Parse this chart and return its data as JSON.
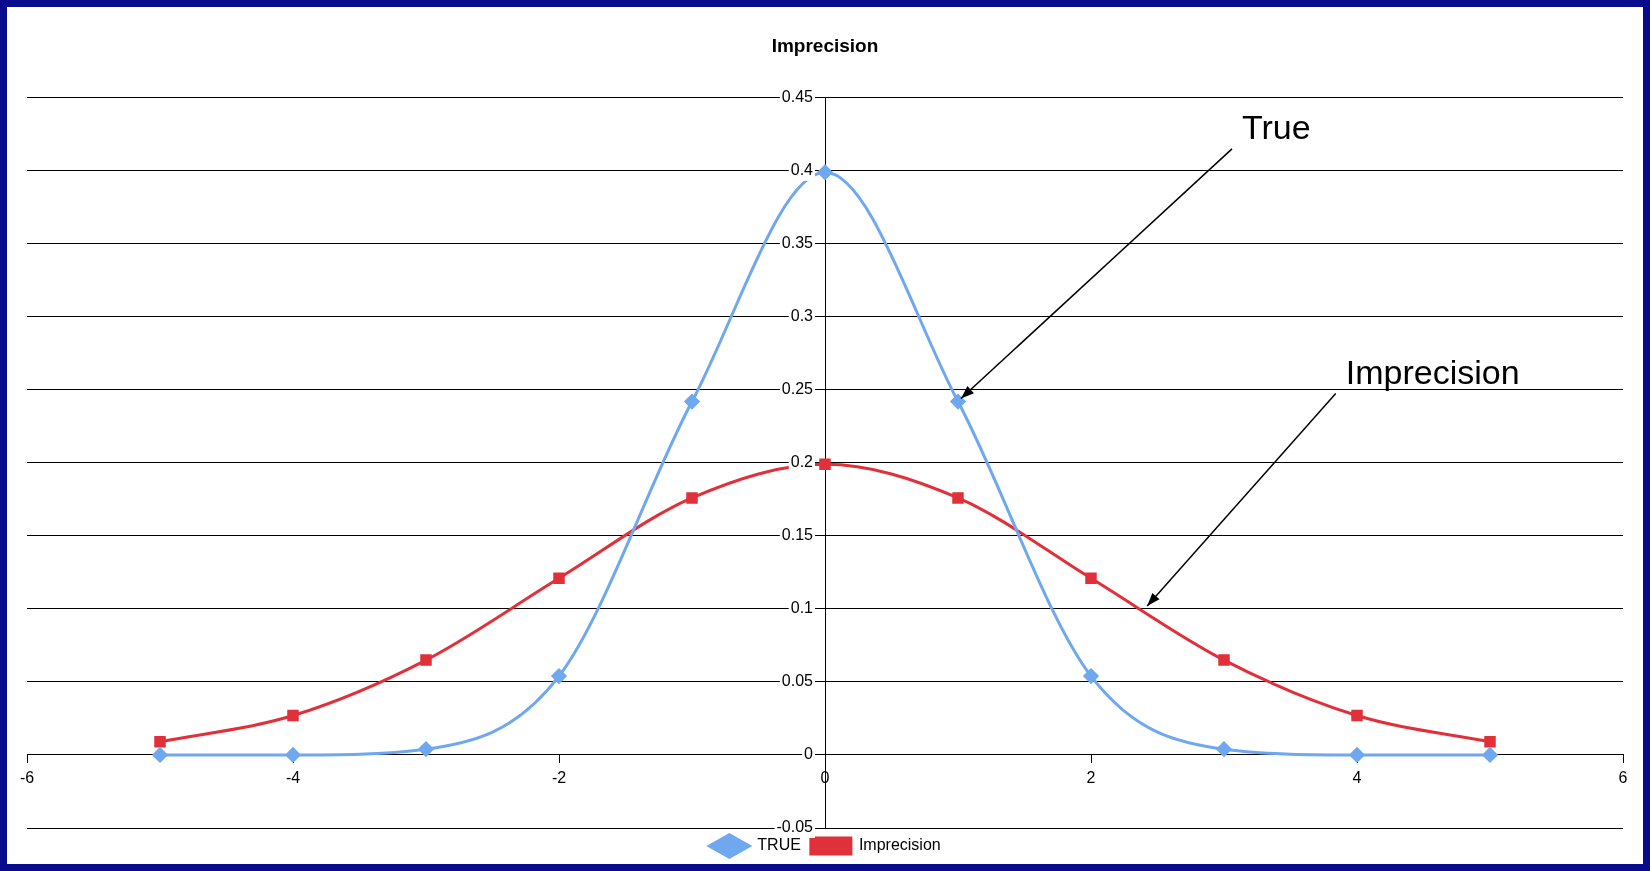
{
  "chart_data": {
    "type": "line",
    "title": "Imprecision",
    "series": [
      {
        "name": "TRUE",
        "color": "#6fa8ef",
        "marker": "diamond",
        "x": [
          -5,
          -4,
          -3,
          -2,
          -1,
          0,
          1,
          2,
          3,
          4,
          5
        ],
        "values": [
          0,
          0,
          0.004,
          0.054,
          0.242,
          0.399,
          0.242,
          0.054,
          0.004,
          0,
          0
        ]
      },
      {
        "name": "Imprecision",
        "color": "#e0303a",
        "marker": "square",
        "x": [
          -5,
          -4,
          -3,
          -2,
          -1,
          0,
          1,
          2,
          3,
          4,
          5
        ],
        "values": [
          0.009,
          0.027,
          0.065,
          0.121,
          0.176,
          0.199,
          0.176,
          0.121,
          0.065,
          0.027,
          0.009
        ]
      }
    ],
    "xlim": [
      -6,
      6
    ],
    "xticks": [
      -6,
      -4,
      -2,
      0,
      2,
      4,
      6
    ],
    "ylim": [
      -0.05,
      0.45
    ],
    "yticks": [
      -0.05,
      0,
      0.05,
      0.1,
      0.15,
      0.2,
      0.25,
      0.3,
      0.35,
      0.4,
      0.45
    ],
    "grid": "y",
    "legend": "bottom",
    "annotations": [
      {
        "text": "True",
        "x": 1,
        "y": 0.242
      },
      {
        "text": "Imprecision",
        "x": 2.4,
        "y": 0.1
      }
    ]
  }
}
